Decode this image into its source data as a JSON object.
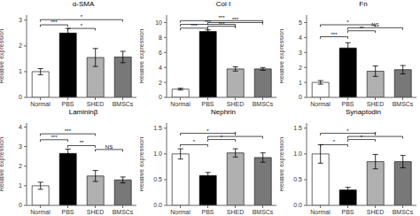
{
  "chart_data": [
    {
      "type": "bar",
      "title": "α-SMA",
      "y_label": "Relative expression",
      "categories": [
        "Normal",
        "PBS",
        "SHED",
        "BMSCs"
      ],
      "values": [
        1.0,
        2.5,
        1.55,
        1.57
      ],
      "errors": [
        0.12,
        0.18,
        0.35,
        0.22
      ],
      "colors": [
        "white",
        "black",
        "#b0b0b0",
        "#787878"
      ],
      "ylim": [
        0,
        3.2
      ],
      "yticks": [
        0,
        1,
        2,
        3
      ],
      "annotations": [
        {
          "text": "***",
          "from": "Normal",
          "to": "PBS",
          "y": 2.82
        },
        {
          "text": "*",
          "from": "PBS",
          "to": "SHED",
          "y": 2.68
        },
        {
          "text": "*",
          "from": "Normal",
          "to": "BMSCs",
          "y": 3.02
        }
      ]
    },
    {
      "type": "bar",
      "title": "Col I",
      "y_label": "Relative expression",
      "categories": [
        "Normal",
        "PBS",
        "SHED",
        "BMSCs"
      ],
      "values": [
        1.1,
        8.8,
        3.8,
        3.8
      ],
      "errors": [
        0.12,
        0.22,
        0.28,
        0.18
      ],
      "colors": [
        "white",
        "black",
        "#b0b0b0",
        "#787878"
      ],
      "ylim": [
        0,
        11.0
      ],
      "yticks": [
        0,
        2,
        4,
        6,
        8,
        10
      ],
      "annotations": [
        {
          "text": "***",
          "from": "Normal",
          "to": "PBS",
          "y": 9.25
        },
        {
          "text": "***",
          "from": "Normal",
          "to": "SHED",
          "y": 9.75
        },
        {
          "text": "***",
          "from": "Normal",
          "to": "BMSCs",
          "y": 10.25
        },
        {
          "text": "***",
          "from": "PBS",
          "to": "SHED",
          "y": 9.5
        },
        {
          "text": "***",
          "from": "PBS",
          "to": "BMSCs",
          "y": 10.0
        }
      ]
    },
    {
      "type": "bar",
      "title": "Fn",
      "y_label": "Relative expression",
      "categories": [
        "Normal",
        "PBS",
        "SHED",
        "BMSCs"
      ],
      "values": [
        1.0,
        3.3,
        1.75,
        1.85
      ],
      "errors": [
        0.12,
        0.35,
        0.35,
        0.28
      ],
      "colors": [
        "white",
        "black",
        "#b0b0b0",
        "#787878"
      ],
      "ylim": [
        0,
        5.5
      ],
      "yticks": [
        0,
        1,
        2,
        3,
        4,
        5
      ],
      "annotations": [
        {
          "text": "***",
          "from": "Normal",
          "to": "PBS",
          "y": 4.05
        },
        {
          "text": "**",
          "from": "PBS",
          "to": "SHED",
          "y": 4.45
        },
        {
          "text": "*",
          "from": "Normal",
          "to": "SHED",
          "y": 4.85
        },
        {
          "text": "NS",
          "from": "PBS",
          "to": "BMSCs",
          "y": 4.65
        }
      ]
    },
    {
      "type": "bar",
      "title": "Lamininβ",
      "y_label": "Relative expression",
      "categories": [
        "Normal",
        "PBS",
        "SHED",
        "BMSCs"
      ],
      "values": [
        1.0,
        2.65,
        1.5,
        1.3
      ],
      "errors": [
        0.18,
        0.22,
        0.28,
        0.15
      ],
      "colors": [
        "white",
        "black",
        "#b0b0b0",
        "#787878"
      ],
      "ylim": [
        0,
        4.2
      ],
      "yticks": [
        0,
        1,
        2,
        3,
        4
      ],
      "annotations": [
        {
          "text": "***",
          "from": "Normal",
          "to": "PBS",
          "y": 3.35
        },
        {
          "text": "**",
          "from": "PBS",
          "to": "SHED",
          "y": 3.05
        },
        {
          "text": "***",
          "from": "Normal",
          "to": "SHED",
          "y": 3.65
        },
        {
          "text": "NS",
          "from": "SHED",
          "to": "BMSCs",
          "y": 2.85
        }
      ]
    },
    {
      "type": "bar",
      "title": "Nephrin",
      "y_label": "Relative expression",
      "categories": [
        "Normal",
        "PBS",
        "SHED",
        "BMSCs"
      ],
      "values": [
        1.0,
        0.58,
        1.02,
        0.93
      ],
      "errors": [
        0.1,
        0.06,
        0.08,
        0.09
      ],
      "colors": [
        "white",
        "black",
        "#b0b0b0",
        "#787878"
      ],
      "ylim": [
        0.0,
        1.6
      ],
      "yticks": [
        {
          "value": 0.0,
          "label": "0.0"
        },
        0.5,
        {
          "value": 1.0,
          "label": "1.0"
        },
        1.5
      ],
      "annotations": [
        {
          "text": "*",
          "from": "Normal",
          "to": "PBS",
          "y": 1.18
        },
        {
          "text": "*",
          "from": "PBS",
          "to": "SHED",
          "y": 1.28
        },
        {
          "text": "*",
          "from": "Normal",
          "to": "SHED",
          "y": 1.4
        },
        {
          "text": "*",
          "from": "PBS",
          "to": "BMSCs",
          "y": 1.34
        }
      ]
    },
    {
      "type": "bar",
      "title": "Synaptodin",
      "y_label": "Relative expression",
      "categories": [
        "Normal",
        "PBS",
        "SHED",
        "BMSCs"
      ],
      "values": [
        1.0,
        0.3,
        0.85,
        0.85
      ],
      "errors": [
        0.18,
        0.05,
        0.14,
        0.12
      ],
      "colors": [
        "white",
        "black",
        "#b0b0b0",
        "#787878"
      ],
      "ylim": [
        0.0,
        1.6
      ],
      "yticks": [
        {
          "value": 0.0,
          "label": "0.0"
        },
        0.5,
        {
          "value": 1.0,
          "label": "1.0"
        },
        1.5
      ],
      "annotations": [
        {
          "text": "*",
          "from": "Normal",
          "to": "PBS",
          "y": 1.18
        },
        {
          "text": "*",
          "from": "PBS",
          "to": "SHED",
          "y": 1.28
        },
        {
          "text": "*",
          "from": "Normal",
          "to": "SHED",
          "y": 1.4
        },
        {
          "text": "*",
          "from": "PBS",
          "to": "BMSCs",
          "y": 1.34
        }
      ]
    }
  ]
}
